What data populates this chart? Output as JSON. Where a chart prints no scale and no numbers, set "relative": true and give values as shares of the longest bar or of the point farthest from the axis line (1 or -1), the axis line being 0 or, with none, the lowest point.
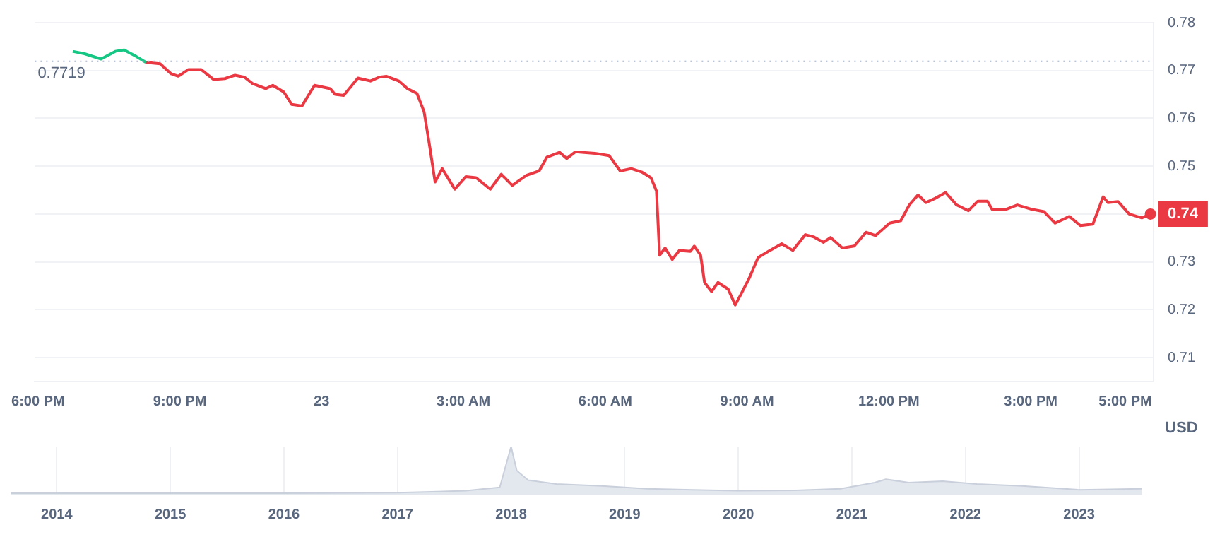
{
  "chart_data": [
    {
      "type": "line",
      "grid": "y",
      "legend": false,
      "marker": "none",
      "xlim": [
        "--01-22T17:56",
        "--01-23T17:36"
      ],
      "xticks": [
        {
          "value": "--01-22T18:00",
          "label": "6:00 PM"
        },
        {
          "value": "--01-22T21:00",
          "label": "9:00 PM"
        },
        {
          "value": "--01-23T00:00",
          "label": "23"
        },
        {
          "value": "--01-23T03:00",
          "label": "3:00 AM"
        },
        {
          "value": "--01-23T06:00",
          "label": "6:00 AM"
        },
        {
          "value": "--01-23T09:00",
          "label": "9:00 AM"
        },
        {
          "value": "--01-23T12:00",
          "label": "12:00 PM"
        },
        {
          "value": "--01-23T15:00",
          "label": "3:00 PM"
        },
        {
          "value": "--01-23T17:00",
          "label": "5:00 PM"
        }
      ],
      "ylim": [
        0.705,
        0.78
      ],
      "yticks": [
        0.71,
        0.72,
        0.73,
        0.74,
        0.75,
        0.76,
        0.77,
        0.78
      ],
      "ref_lines": [
        {
          "axis": "y",
          "value": 0.7719,
          "label": "0.7719",
          "line_style": "dotted",
          "color": "#a6b0c3"
        }
      ],
      "annotations": [
        "0.74",
        "USD"
      ],
      "series": [
        {
          "color": "#16c784",
          "x": [
            "--01-22T18:44",
            "--01-22T18:59",
            "--01-22T19:20",
            "--01-22T19:38",
            "--01-22T19:49",
            "--01-22T20:05",
            "--01-22T20:17"
          ],
          "values": [
            0.774,
            0.7735,
            0.7724,
            0.774,
            0.7743,
            0.7729,
            0.7717
          ]
        },
        {
          "color": "#ea3943",
          "x": [
            "--01-22T20:17",
            "--01-22T20:35",
            "--01-22T20:49",
            "--01-22T20:58",
            "--01-22T21:11",
            "--01-22T21:27",
            "--01-22T21:43",
            "--01-22T21:57",
            "--01-22T22:10",
            "--01-22T22:22",
            "--01-22T22:32",
            "--01-22T22:49",
            "--01-22T22:58",
            "--01-22T23:12",
            "--01-22T23:22",
            "--01-22T23:35",
            "--01-22T23:51",
            "--01-23T00:11",
            "--01-23T00:17",
            "--01-23T00:28",
            "--01-23T00:46",
            "--01-23T01:02",
            "--01-23T01:13",
            "--01-23T01:22",
            "--01-23T01:38",
            "--01-23T01:49",
            "--01-23T02:01",
            "--01-23T02:10",
            "--01-23T02:17",
            "--01-23T02:24",
            "--01-23T02:33",
            "--01-23T02:49",
            "--01-23T03:03",
            "--01-23T03:16",
            "--01-23T03:34",
            "--01-23T03:48",
            "--01-23T04:02",
            "--01-23T04:20",
            "--01-23T04:36",
            "--01-23T04:46",
            "--01-23T05:02",
            "--01-23T05:11",
            "--01-23T05:22",
            "--01-23T05:47",
            "--01-23T06:05",
            "--01-23T06:19",
            "--01-23T06:33",
            "--01-23T06:46",
            "--01-23T06:58",
            "--01-23T07:05",
            "--01-23T07:09",
            "--01-23T07:16",
            "--01-23T07:25",
            "--01-23T07:34",
            "--01-23T07:48",
            "--01-23T07:53",
            "--01-23T08:01",
            "--01-23T08:06",
            "--01-23T08:15",
            "--01-23T08:23",
            "--01-23T08:36",
            "--01-23T08:45",
            "--01-23T08:54",
            "--01-23T09:03",
            "--01-23T09:14",
            "--01-23T09:29",
            "--01-23T09:44",
            "--01-23T09:58",
            "--01-23T10:14",
            "--01-23T10:25",
            "--01-23T10:37",
            "--01-23T10:46",
            "--01-23T11:01",
            "--01-23T11:16",
            "--01-23T11:31",
            "--01-23T11:43",
            "--01-23T12:01",
            "--01-23T12:15",
            "--01-23T12:26",
            "--01-23T12:37",
            "--01-23T12:47",
            "--01-23T12:59",
            "--01-23T13:12",
            "--01-23T13:26",
            "--01-23T13:41",
            "--01-23T13:53",
            "--01-23T14:05",
            "--01-23T14:11",
            "--01-23T14:29",
            "--01-23T14:43",
            "--01-23T15:01",
            "--01-23T15:17",
            "--01-23T15:31",
            "--01-23T15:49",
            "--01-23T16:03",
            "--01-23T16:19",
            "--01-23T16:32",
            "--01-23T16:38",
            "--01-23T16:51",
            "--01-23T17:05",
            "--01-23T17:21",
            "--01-23T17:32"
          ],
          "values": [
            0.7717,
            0.7714,
            0.7693,
            0.7688,
            0.7702,
            0.7702,
            0.7681,
            0.7683,
            0.769,
            0.7686,
            0.7673,
            0.7662,
            0.7669,
            0.7655,
            0.7629,
            0.7626,
            0.7669,
            0.7662,
            0.765,
            0.7648,
            0.7684,
            0.7678,
            0.7686,
            0.7688,
            0.7678,
            0.7662,
            0.7652,
            0.7614,
            0.7543,
            0.7467,
            0.7495,
            0.7452,
            0.7478,
            0.7476,
            0.7452,
            0.7483,
            0.746,
            0.7481,
            0.749,
            0.7519,
            0.7529,
            0.7516,
            0.753,
            0.7527,
            0.7522,
            0.749,
            0.7495,
            0.7488,
            0.7476,
            0.7448,
            0.7314,
            0.7329,
            0.7305,
            0.7324,
            0.7322,
            0.7333,
            0.7314,
            0.7257,
            0.7238,
            0.7257,
            0.7243,
            0.721,
            0.7238,
            0.7267,
            0.7309,
            0.7324,
            0.7338,
            0.7324,
            0.7357,
            0.7352,
            0.7341,
            0.7351,
            0.7329,
            0.7333,
            0.7362,
            0.7355,
            0.7381,
            0.7386,
            0.7419,
            0.744,
            0.7424,
            0.7433,
            0.7445,
            0.7419,
            0.7407,
            0.7427,
            0.7427,
            0.741,
            0.741,
            0.7419,
            0.741,
            0.7405,
            0.7381,
            0.7395,
            0.7376,
            0.7379,
            0.7436,
            0.7424,
            0.7426,
            0.74,
            0.7392,
            0.74
          ]
        }
      ]
    },
    {
      "type": "area",
      "relative": true,
      "grid": "x",
      "legend": false,
      "tick_labels": "x",
      "xlim": [
        2013.6,
        2023.55
      ],
      "xticks": [
        2014,
        2015,
        2016,
        2017,
        2018,
        2019,
        2020,
        2021,
        2022,
        2023
      ],
      "series": [
        {
          "color": "#e3e7ee",
          "x": [
            2013.6,
            2014,
            2015,
            2016,
            2017,
            2017.3,
            2017.6,
            2017.9,
            2018,
            2018.05,
            2018.15,
            2018.4,
            2018.8,
            2019.2,
            2019.6,
            2020,
            2020.5,
            2020.9,
            2021.2,
            2021.3,
            2021.5,
            2021.8,
            2022.1,
            2022.5,
            2023,
            2023.55
          ],
          "values": [
            0.03,
            0.03,
            0.03,
            0.03,
            0.04,
            0.06,
            0.08,
            0.15,
            1,
            0.5,
            0.3,
            0.22,
            0.18,
            0.12,
            0.1,
            0.08,
            0.09,
            0.12,
            0.25,
            0.32,
            0.25,
            0.28,
            0.22,
            0.18,
            0.1,
            0.12
          ]
        }
      ]
    }
  ]
}
